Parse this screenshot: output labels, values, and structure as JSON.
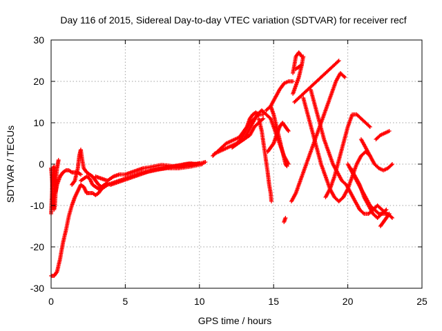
{
  "chart_data": {
    "type": "scatter",
    "title": "Day 116 of 2015, Sidereal Day-to-day VTEC variation (SDTVAR) for receiver recf",
    "xlabel": "GPS time / hours",
    "ylabel": "SDTVAR / TECUs",
    "xlim": [
      0,
      25
    ],
    "ylim": [
      -30,
      30
    ],
    "xticks": [
      "0",
      "5",
      "10",
      "15",
      "20",
      "25"
    ],
    "yticks": [
      "-30",
      "-20",
      "-10",
      "0",
      "10",
      "20",
      "30"
    ],
    "grid": true,
    "marker": "plus",
    "color": "#ff0000",
    "series": [
      {
        "x": [
          0.0,
          0.2,
          0.4,
          0.6,
          0.8,
          1.0,
          1.2,
          1.4,
          1.6,
          1.8,
          2.0,
          2.2,
          2.4,
          2.6,
          2.8,
          3.0,
          3.2,
          3.4
        ],
        "y": [
          -27,
          -27,
          -26,
          -23,
          -19,
          -16,
          -12.5,
          -10,
          -8,
          -6.5,
          -5,
          -5.5,
          -7,
          -7,
          -7,
          -7.5,
          -7,
          -6
        ]
      },
      {
        "x": [
          0.0,
          0.05,
          0.1,
          0.15,
          0.2,
          0.25,
          0.3,
          0.35,
          0.4,
          0.5,
          0.6,
          0.7,
          0.8,
          1.0,
          1.2,
          1.4,
          1.6,
          1.8,
          2.0
        ],
        "y": [
          -12,
          -8,
          -3,
          -1,
          -0.5,
          -4,
          -7,
          -6,
          -5,
          -4,
          -3,
          -2.5,
          -2,
          -1.5,
          -1.5,
          -2,
          -2,
          -2,
          -2.5
        ]
      },
      {
        "x": [
          0.0,
          0.05,
          0.1,
          0.15,
          0.2,
          0.25,
          0.3,
          0.35,
          0.4,
          0.45,
          0.5
        ],
        "y": [
          -1,
          -3,
          -6,
          -9,
          -11,
          -10,
          -7,
          -3,
          -1,
          0,
          1
        ]
      },
      {
        "x": [
          1.4,
          1.6,
          1.8,
          1.9,
          2.0,
          2.1,
          2.2,
          2.4,
          2.6,
          2.8,
          3.0,
          3.2,
          3.4,
          3.6
        ],
        "y": [
          -5,
          -4,
          -1,
          2,
          3.5,
          1,
          -1,
          -2,
          -2.5,
          -3,
          -4,
          -5,
          -5.5,
          -5
        ]
      },
      {
        "x": [
          2.0,
          2.2,
          2.4,
          2.6,
          2.8,
          3.0,
          3.2,
          3.4,
          3.6,
          3.8
        ],
        "y": [
          -4,
          -3.5,
          -3,
          -3.5,
          -5,
          -5.5,
          -6,
          -5.5,
          -5,
          -4.5
        ]
      },
      {
        "x": [
          3.4,
          3.8,
          4.2,
          4.6,
          5.0,
          5.4,
          5.8,
          6.2,
          6.6,
          7.0,
          7.4,
          7.8,
          8.2,
          8.6,
          9.0,
          9.4,
          9.8,
          10.2
        ],
        "y": [
          -6,
          -5,
          -4.5,
          -4,
          -3.5,
          -3,
          -2.5,
          -2,
          -1.8,
          -1.5,
          -1.2,
          -1,
          -1,
          -1,
          -0.8,
          -0.6,
          -0.3,
          0
        ]
      },
      {
        "x": [
          3.0,
          3.4,
          3.8,
          4.2,
          4.6,
          5.0,
          5.4,
          5.8,
          6.2,
          6.6,
          7.0,
          7.4,
          7.8,
          8.2,
          8.6,
          9.0,
          9.4,
          9.8,
          10.2,
          10.4
        ],
        "y": [
          -3,
          -3.5,
          -4,
          -3,
          -2.5,
          -2.5,
          -2,
          -1.5,
          -1,
          -0.8,
          -0.5,
          -0.2,
          -0.3,
          -0.5,
          -0.3,
          0,
          0.2,
          0,
          0.3,
          0.5
        ]
      },
      {
        "x": [
          4.0,
          4.4,
          4.8,
          5.2,
          5.6,
          6.0,
          6.4,
          6.8,
          7.2,
          7.6,
          8.0,
          8.4,
          8.8,
          9.2,
          9.6,
          10.0
        ],
        "y": [
          -5,
          -4.5,
          -4,
          -3.5,
          -3,
          -2.5,
          -2,
          -1.5,
          -1.2,
          -1,
          -0.7,
          -0.5,
          -0.3,
          0,
          0,
          0.2
        ]
      },
      {
        "x": [
          10.9,
          11.2,
          11.5,
          11.8,
          12.1,
          12.4,
          12.7,
          13.0,
          13.2,
          13.4,
          13.6,
          13.8,
          14.0
        ],
        "y": [
          2,
          3,
          4,
          5,
          5.5,
          6,
          6.5,
          8,
          9,
          11,
          12,
          12.5,
          12
        ]
      },
      {
        "x": [
          11.0,
          11.3,
          11.6,
          11.9,
          12.2,
          12.5,
          12.8,
          13.1,
          13.4,
          13.7,
          14.0,
          14.3
        ],
        "y": [
          2.5,
          3,
          3.5,
          4,
          4.5,
          5,
          6,
          8,
          10,
          11,
          12,
          12
        ]
      },
      {
        "x": [
          12.2,
          12.6,
          13.0,
          13.4,
          13.7,
          14.0,
          14.3
        ],
        "y": [
          4,
          5,
          6,
          7,
          9,
          10,
          11
        ]
      },
      {
        "x": [
          14.0,
          14.2,
          14.4,
          14.6,
          14.7,
          14.8,
          14.85
        ],
        "y": [
          11,
          8,
          3,
          -2,
          -5,
          -7,
          -9
        ]
      },
      {
        "x": [
          13.0,
          13.3,
          13.6,
          13.9,
          14.2,
          14.5,
          14.8,
          15.1,
          15.4,
          15.7,
          16.0
        ],
        "y": [
          6,
          8,
          10,
          12,
          13,
          12,
          11,
          8,
          5,
          2,
          0
        ]
      },
      {
        "x": [
          14.6,
          14.8,
          15.0,
          15.2,
          15.4,
          15.6,
          15.8,
          16.0
        ],
        "y": [
          3,
          4,
          5,
          7,
          9,
          10,
          9,
          8
        ]
      },
      {
        "x": [
          14.5,
          14.8,
          15.1,
          15.4,
          15.7,
          16.0,
          16.3
        ],
        "y": [
          13,
          14,
          16,
          18,
          19.5,
          20,
          20
        ]
      },
      {
        "x": [
          14.8,
          15.0,
          15.2,
          15.4,
          15.6,
          15.8,
          15.9
        ],
        "y": [
          14,
          12,
          9,
          6,
          3,
          0,
          -0.5
        ]
      },
      {
        "x": [
          15.7,
          15.75,
          15.8
        ],
        "y": [
          -14,
          -13.5,
          -13
        ]
      },
      {
        "x": [
          16.3,
          16.5,
          16.7,
          16.9,
          17.0
        ],
        "y": [
          17,
          19,
          21,
          24,
          26
        ]
      },
      {
        "x": [
          16.3,
          16.5,
          16.7,
          16.9
        ],
        "y": [
          22,
          26,
          27,
          26
        ]
      },
      {
        "x": [
          16.5,
          16.7,
          16.9
        ],
        "y": [
          23,
          23.5,
          24
        ]
      },
      {
        "x": [
          16.2,
          16.5,
          16.8,
          17.1,
          17.4,
          17.7,
          18.0,
          18.3,
          18.6,
          18.9,
          19.2,
          19.5,
          19.8
        ],
        "y": [
          -9,
          -7,
          -4,
          -1,
          2,
          5,
          8,
          11,
          14,
          17,
          20,
          22,
          21
        ]
      },
      {
        "x": [
          16.4,
          16.7,
          17.0,
          17.3,
          17.6,
          17.9,
          18.2,
          18.5,
          18.8,
          19.1,
          19.4
        ],
        "y": [
          15,
          16,
          17,
          18,
          19,
          20,
          21,
          22,
          23,
          24,
          25
        ]
      },
      {
        "x": [
          17.0,
          17.3,
          17.6,
          17.9,
          18.2,
          18.5,
          18.8,
          19.1,
          19.4,
          19.7,
          20.0,
          20.3,
          20.6,
          20.9,
          21.2,
          21.5
        ],
        "y": [
          16,
          12,
          8,
          4,
          0,
          -3,
          -6,
          -8,
          -9,
          -8,
          -6,
          -3,
          0,
          2,
          3,
          2
        ]
      },
      {
        "x": [
          17.5,
          17.8,
          18.1,
          18.4,
          18.7,
          19.0,
          19.3,
          19.6,
          19.9,
          20.2,
          20.5,
          20.8,
          21.1,
          21.4,
          21.7,
          22.0,
          22.3,
          22.6
        ],
        "y": [
          18,
          14,
          10,
          6,
          3,
          0,
          -2,
          -4,
          -5,
          -7,
          -9,
          -11,
          -12,
          -12,
          -11,
          -10,
          -11,
          -12
        ]
      },
      {
        "x": [
          18.5,
          18.8,
          19.1,
          19.4,
          19.7,
          20.0,
          20.3,
          20.6,
          20.9,
          21.2,
          21.5
        ],
        "y": [
          -8,
          -6,
          -3,
          1,
          5,
          9,
          12,
          12,
          11,
          10,
          9
        ]
      },
      {
        "x": [
          20.0,
          20.3,
          20.6,
          20.9,
          21.2,
          21.5,
          21.8,
          22.1,
          22.4,
          22.7,
          23.0
        ],
        "y": [
          0,
          -2,
          -4,
          -6,
          -8,
          -10,
          -11,
          -12,
          -12,
          -12,
          -13
        ]
      },
      {
        "x": [
          20.2,
          20.5,
          20.8,
          21.1,
          21.4,
          21.7,
          22.0,
          22.3,
          22.6
        ],
        "y": [
          -1,
          -3,
          -5,
          -8,
          -10,
          -12,
          -13,
          -12,
          -11
        ]
      },
      {
        "x": [
          20.9,
          21.2,
          21.5,
          21.8,
          22.1,
          22.4,
          22.7,
          23.0
        ],
        "y": [
          6,
          4,
          2,
          0,
          -1,
          -1.5,
          -1,
          0
        ]
      },
      {
        "x": [
          21.9,
          22.2,
          22.5,
          22.8
        ],
        "y": [
          6,
          7,
          7.5,
          8
        ]
      },
      {
        "x": [
          22.2,
          22.4,
          22.6,
          22.8
        ],
        "y": [
          -15,
          -14,
          -13,
          -12
        ]
      }
    ]
  }
}
